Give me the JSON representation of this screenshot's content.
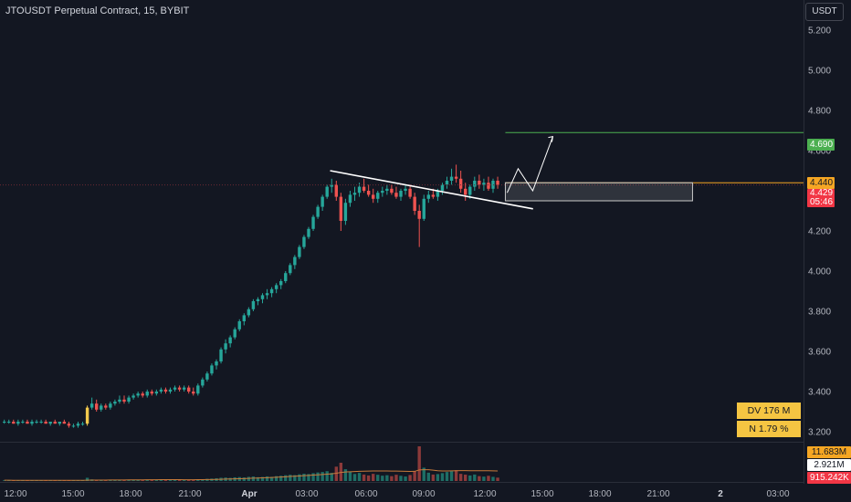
{
  "header": {
    "title": "JTOUSDT Perpetual Contract, 15, BYBIT",
    "currency": "USDT"
  },
  "price_axis": {
    "ticks": [
      "5.200",
      "5.000",
      "4.800",
      "4.600",
      "4.400",
      "4.200",
      "4.000",
      "3.800",
      "3.600",
      "3.400",
      "3.200"
    ]
  },
  "time_axis": {
    "ticks": [
      "12:00",
      "15:00",
      "18:00",
      "21:00",
      "Apr",
      "03:00",
      "06:00",
      "09:00",
      "12:00",
      "15:00",
      "18:00",
      "21:00",
      "2",
      "03:00"
    ]
  },
  "badges": {
    "target": "4.690",
    "level": "4.440",
    "price": "4.429",
    "countdown": "05:46",
    "vol_ma": "11.683M",
    "vol_value": "2.921M",
    "vol_last": "915.242K"
  },
  "info": {
    "dv": "DV 176 M",
    "n": "N 1.79 %"
  },
  "colors": {
    "bg": "#131722",
    "up": "#26a69a",
    "down": "#ef5350",
    "target": "#4caf50",
    "level": "#f5a623",
    "price": "#f23645",
    "info_box": "#f5c542"
  },
  "chart_data": {
    "type": "candlestick",
    "symbol": "JTOUSDT Perpetual Contract",
    "interval": "15",
    "exchange": "BYBIT",
    "ylim": [
      3.15,
      5.35
    ],
    "levels": {
      "target": 4.69,
      "level": 4.44,
      "last": 4.429
    },
    "zone": {
      "low": 4.35,
      "high": 4.44
    },
    "trendline": [
      [
        4.5,
        4.45
      ],
      [
        4.33,
        4.31
      ]
    ],
    "projection": [
      4.39,
      4.51,
      4.4,
      4.67
    ],
    "candles": [
      [
        3.25,
        3.26,
        3.24,
        3.25
      ],
      [
        3.25,
        3.26,
        3.24,
        3.25
      ],
      [
        3.25,
        3.26,
        3.24,
        3.24
      ],
      [
        3.24,
        3.26,
        3.23,
        3.25
      ],
      [
        3.25,
        3.26,
        3.24,
        3.25
      ],
      [
        3.25,
        3.26,
        3.24,
        3.24
      ],
      [
        3.24,
        3.26,
        3.23,
        3.25
      ],
      [
        3.25,
        3.26,
        3.24,
        3.25
      ],
      [
        3.25,
        3.26,
        3.24,
        3.25
      ],
      [
        3.25,
        3.26,
        3.24,
        3.24
      ],
      [
        3.24,
        3.25,
        3.23,
        3.25
      ],
      [
        3.25,
        3.26,
        3.24,
        3.24
      ],
      [
        3.24,
        3.25,
        3.23,
        3.25
      ],
      [
        3.25,
        3.26,
        3.24,
        3.24
      ],
      [
        3.24,
        3.25,
        3.22,
        3.23
      ],
      [
        3.23,
        3.24,
        3.22,
        3.23
      ],
      [
        3.23,
        3.25,
        3.22,
        3.24
      ],
      [
        3.24,
        3.25,
        3.23,
        3.24
      ],
      [
        3.24,
        3.33,
        3.23,
        3.32
      ],
      [
        3.32,
        3.37,
        3.31,
        3.34
      ],
      [
        3.34,
        3.36,
        3.3,
        3.31
      ],
      [
        3.31,
        3.34,
        3.3,
        3.33
      ],
      [
        3.33,
        3.34,
        3.31,
        3.32
      ],
      [
        3.32,
        3.35,
        3.31,
        3.34
      ],
      [
        3.34,
        3.36,
        3.33,
        3.35
      ],
      [
        3.35,
        3.38,
        3.34,
        3.36
      ],
      [
        3.36,
        3.38,
        3.34,
        3.35
      ],
      [
        3.35,
        3.38,
        3.34,
        3.37
      ],
      [
        3.37,
        3.39,
        3.36,
        3.38
      ],
      [
        3.38,
        3.4,
        3.37,
        3.39
      ],
      [
        3.39,
        3.4,
        3.37,
        3.38
      ],
      [
        3.38,
        3.41,
        3.37,
        3.4
      ],
      [
        3.4,
        3.41,
        3.38,
        3.39
      ],
      [
        3.39,
        3.41,
        3.38,
        3.4
      ],
      [
        3.4,
        3.42,
        3.39,
        3.41
      ],
      [
        3.41,
        3.42,
        3.39,
        3.4
      ],
      [
        3.4,
        3.42,
        3.39,
        3.41
      ],
      [
        3.41,
        3.43,
        3.4,
        3.42
      ],
      [
        3.42,
        3.43,
        3.4,
        3.41
      ],
      [
        3.41,
        3.43,
        3.4,
        3.42
      ],
      [
        3.42,
        3.43,
        3.39,
        3.4
      ],
      [
        3.4,
        3.42,
        3.38,
        3.39
      ],
      [
        3.39,
        3.44,
        3.38,
        3.43
      ],
      [
        3.43,
        3.47,
        3.42,
        3.46
      ],
      [
        3.46,
        3.5,
        3.45,
        3.49
      ],
      [
        3.49,
        3.54,
        3.48,
        3.53
      ],
      [
        3.53,
        3.56,
        3.51,
        3.55
      ],
      [
        3.55,
        3.62,
        3.54,
        3.61
      ],
      [
        3.61,
        3.66,
        3.59,
        3.64
      ],
      [
        3.64,
        3.68,
        3.62,
        3.67
      ],
      [
        3.67,
        3.72,
        3.66,
        3.71
      ],
      [
        3.71,
        3.76,
        3.7,
        3.75
      ],
      [
        3.75,
        3.79,
        3.73,
        3.78
      ],
      [
        3.78,
        3.82,
        3.77,
        3.81
      ],
      [
        3.81,
        3.86,
        3.8,
        3.85
      ],
      [
        3.85,
        3.87,
        3.83,
        3.86
      ],
      [
        3.86,
        3.89,
        3.84,
        3.88
      ],
      [
        3.88,
        3.91,
        3.86,
        3.89
      ],
      [
        3.89,
        3.92,
        3.87,
        3.91
      ],
      [
        3.91,
        3.94,
        3.89,
        3.93
      ],
      [
        3.93,
        3.96,
        3.91,
        3.95
      ],
      [
        3.95,
        4.0,
        3.94,
        3.99
      ],
      [
        3.99,
        4.04,
        3.98,
        4.03
      ],
      [
        4.03,
        4.08,
        4.01,
        4.07
      ],
      [
        4.07,
        4.13,
        4.06,
        4.12
      ],
      [
        4.12,
        4.18,
        4.11,
        4.17
      ],
      [
        4.17,
        4.22,
        4.16,
        4.21
      ],
      [
        4.21,
        4.28,
        4.2,
        4.27
      ],
      [
        4.27,
        4.33,
        4.26,
        4.32
      ],
      [
        4.32,
        4.38,
        4.3,
        4.37
      ],
      [
        4.37,
        4.43,
        4.36,
        4.42
      ],
      [
        4.42,
        4.46,
        4.39,
        4.43
      ],
      [
        4.43,
        4.45,
        4.35,
        4.37
      ],
      [
        4.37,
        4.39,
        4.2,
        4.25
      ],
      [
        4.25,
        4.36,
        4.23,
        4.34
      ],
      [
        4.34,
        4.4,
        4.32,
        4.38
      ],
      [
        4.38,
        4.42,
        4.35,
        4.39
      ],
      [
        4.39,
        4.44,
        4.37,
        4.42
      ],
      [
        4.42,
        4.46,
        4.39,
        4.4
      ],
      [
        4.4,
        4.43,
        4.37,
        4.38
      ],
      [
        4.38,
        4.41,
        4.34,
        4.36
      ],
      [
        4.36,
        4.4,
        4.34,
        4.39
      ],
      [
        4.39,
        4.42,
        4.37,
        4.4
      ],
      [
        4.4,
        4.43,
        4.38,
        4.41
      ],
      [
        4.41,
        4.43,
        4.38,
        4.39
      ],
      [
        4.39,
        4.42,
        4.36,
        4.37
      ],
      [
        4.37,
        4.41,
        4.35,
        4.4
      ],
      [
        4.4,
        4.43,
        4.38,
        4.41
      ],
      [
        4.41,
        4.43,
        4.36,
        4.37
      ],
      [
        4.37,
        4.39,
        4.28,
        4.3
      ],
      [
        4.3,
        4.33,
        4.12,
        4.26
      ],
      [
        4.26,
        4.38,
        4.25,
        4.36
      ],
      [
        4.36,
        4.4,
        4.34,
        4.38
      ],
      [
        4.38,
        4.41,
        4.36,
        4.37
      ],
      [
        4.37,
        4.41,
        4.35,
        4.4
      ],
      [
        4.4,
        4.44,
        4.38,
        4.43
      ],
      [
        4.43,
        4.47,
        4.41,
        4.45
      ],
      [
        4.45,
        4.51,
        4.43,
        4.47
      ],
      [
        4.47,
        4.53,
        4.44,
        4.46
      ],
      [
        4.46,
        4.5,
        4.39,
        4.41
      ],
      [
        4.41,
        4.44,
        4.35,
        4.38
      ],
      [
        4.38,
        4.43,
        4.36,
        4.42
      ],
      [
        4.42,
        4.47,
        4.4,
        4.45
      ],
      [
        4.45,
        4.48,
        4.41,
        4.43
      ],
      [
        4.43,
        4.46,
        4.4,
        4.44
      ],
      [
        4.44,
        4.47,
        4.4,
        4.41
      ],
      [
        4.41,
        4.46,
        4.39,
        4.45
      ],
      [
        4.45,
        4.47,
        4.41,
        4.43
      ]
    ],
    "volume": {
      "ma_value": 11.683,
      "value": 2.921,
      "last": 0.915,
      "bars": [
        0.6,
        0.5,
        0.5,
        0.4,
        0.5,
        0.5,
        0.4,
        0.5,
        0.5,
        0.4,
        0.5,
        0.4,
        0.5,
        0.5,
        0.6,
        0.5,
        0.5,
        0.5,
        2.8,
        1.4,
        1.0,
        0.9,
        0.8,
        0.9,
        0.8,
        1.0,
        0.8,
        0.9,
        0.9,
        1.0,
        0.9,
        1.0,
        0.8,
        0.9,
        1.0,
        0.9,
        0.9,
        1.0,
        0.9,
        1.0,
        1.1,
        1.0,
        1.4,
        1.6,
        1.9,
        2.1,
        2.4,
        2.8,
        3.0,
        2.7,
        3.2,
        3.4,
        3.1,
        3.6,
        3.9,
        3.3,
        3.5,
        4.0,
        3.6,
        4.2,
        4.5,
        5.0,
        5.4,
        5.1,
        5.8,
        6.3,
        6.0,
        6.8,
        7.4,
        7.8,
        8.5,
        7.0,
        12.4,
        15.8,
        10.2,
        8.0,
        6.1,
        7.0,
        5.6,
        4.8,
        6.2,
        5.4,
        4.6,
        5.0,
        4.2,
        5.4,
        4.5,
        3.9,
        5.2,
        8.4,
        30.0,
        11.5,
        7.2,
        5.6,
        6.0,
        6.8,
        7.8,
        8.6,
        9.4,
        6.2,
        5.5,
        4.8,
        5.6,
        4.2,
        3.8,
        4.5,
        3.6,
        2.9
      ]
    }
  }
}
